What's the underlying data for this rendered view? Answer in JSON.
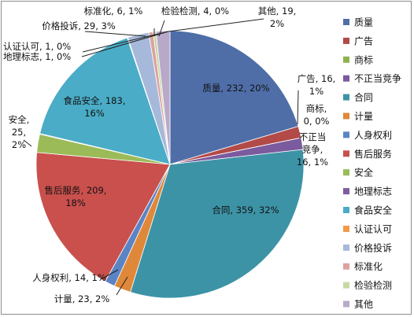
{
  "chart_data": {
    "type": "pie",
    "title": "",
    "start_angle_deg": 0,
    "direction": "clockwise",
    "legend_position": "right",
    "slices": [
      {
        "name": "质量",
        "value": 232,
        "percent": "20%",
        "color": "#4F6EA8"
      },
      {
        "name": "广告",
        "value": 16,
        "percent": "1%",
        "color": "#B24A47"
      },
      {
        "name": "商标",
        "value": 0,
        "percent": "0%",
        "color": "#8FB24F"
      },
      {
        "name": "不正当竞争",
        "value": 16,
        "percent": "1%",
        "color": "#7B5A9E"
      },
      {
        "name": "合同",
        "value": 359,
        "percent": "32%",
        "color": "#3D93A6"
      },
      {
        "name": "计量",
        "value": 23,
        "percent": "2%",
        "color": "#E0883A"
      },
      {
        "name": "人身权利",
        "value": 14,
        "percent": "1%",
        "color": "#5B84C4"
      },
      {
        "name": "售后服务",
        "value": 209,
        "percent": "18%",
        "color": "#C9504D"
      },
      {
        "name": "安全",
        "value": 25,
        "percent": "2%",
        "color": "#9BBB59"
      },
      {
        "name": "地理标志",
        "value": 1,
        "percent": "0%",
        "color": "#7E5C9F"
      },
      {
        "name": "食品安全",
        "value": 183,
        "percent": "16%",
        "color": "#4AACC6"
      },
      {
        "name": "认证认可",
        "value": 1,
        "percent": "0%",
        "color": "#F29A4A"
      },
      {
        "name": "价格投诉",
        "value": 29,
        "percent": "3%",
        "color": "#A6B9DA"
      },
      {
        "name": "标准化",
        "value": 6,
        "percent": "1%",
        "color": "#DDA2A1"
      },
      {
        "name": "检验检测",
        "value": 4,
        "percent": "0%",
        "color": "#C6D9A3"
      },
      {
        "name": "其他",
        "value": 19,
        "percent": "2%",
        "color": "#B8A9CB"
      }
    ],
    "data_labels": [
      {
        "name": "质量",
        "lines": [
          "质量, 232, 20%"
        ]
      },
      {
        "name": "广告",
        "lines": [
          "广告, 16,",
          "1%"
        ]
      },
      {
        "name": "商标",
        "lines": [
          "商标,",
          "0, 0%"
        ]
      },
      {
        "name": "不正当竞争",
        "lines": [
          "不正当",
          "竞争,",
          "16, 1%"
        ]
      },
      {
        "name": "合同",
        "lines": [
          "合同, 359, 32%"
        ]
      },
      {
        "name": "计量",
        "lines": [
          "计量, 23, 2%"
        ]
      },
      {
        "name": "人身权利",
        "lines": [
          "人身权利, 14, 1%"
        ]
      },
      {
        "name": "售后服务",
        "lines": [
          "售后服务, 209,",
          "18%"
        ]
      },
      {
        "name": "安全",
        "lines": [
          "安全,",
          "25,",
          "2%"
        ]
      },
      {
        "name": "地理标志",
        "lines": [
          "地理标志, 1, 0%"
        ]
      },
      {
        "name": "食品安全",
        "lines": [
          "食品安全, 183,",
          "16%"
        ]
      },
      {
        "name": "认证认可",
        "lines": [
          "认证认可, 1, 0%"
        ]
      },
      {
        "name": "价格投诉",
        "lines": [
          "价格投诉, 29, 3%"
        ]
      },
      {
        "name": "标准化",
        "lines": [
          "标准化, 6, 1%"
        ]
      },
      {
        "name": "检验检测",
        "lines": [
          "检验检测, 4, 0%"
        ]
      },
      {
        "name": "其他",
        "lines": [
          "其他, 19,",
          "2%"
        ]
      }
    ]
  }
}
